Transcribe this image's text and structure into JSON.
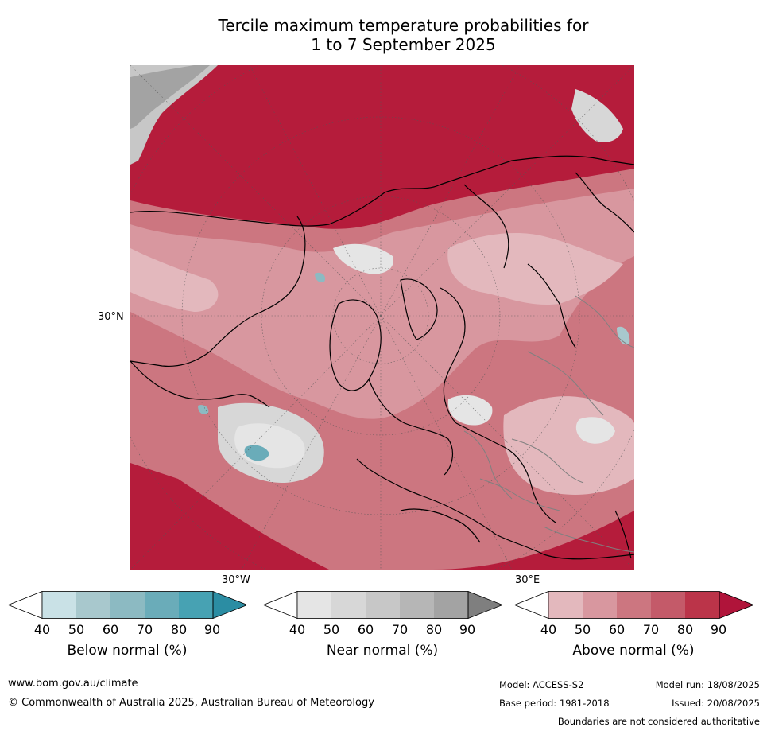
{
  "title": {
    "line1": "Tercile maximum temperature probabilities for",
    "line2": "1 to 7 September 2025"
  },
  "map_labels": {
    "lat": "30°N",
    "lon_left": "30°W",
    "lon_right": "30°E"
  },
  "colorbars": [
    {
      "label": "Below normal (%)",
      "ticks": [
        "40",
        "50",
        "60",
        "70",
        "80",
        "90"
      ],
      "colors": [
        "#ffffff",
        "#c9e1e6",
        "#a8c8cd",
        "#8cbac2",
        "#6aacb9",
        "#47a2b3",
        "#2b8da3"
      ]
    },
    {
      "label": "Near normal (%)",
      "ticks": [
        "40",
        "50",
        "60",
        "70",
        "80",
        "90"
      ],
      "colors": [
        "#ffffff",
        "#e5e5e5",
        "#d7d7d7",
        "#c7c7c7",
        "#b6b6b6",
        "#a3a3a3",
        "#7f7f7f"
      ]
    },
    {
      "label": "Above normal (%)",
      "ticks": [
        "40",
        "50",
        "60",
        "70",
        "80",
        "90"
      ],
      "colors": [
        "#ffffff",
        "#e3b8bd",
        "#d8979f",
        "#cc7680",
        "#c45a69",
        "#bb3449",
        "#b0143a"
      ]
    }
  ],
  "footer": {
    "website": "www.bom.gov.au/climate",
    "copyright": "© Commonwealth of Australia 2025, Australian Bureau of Meteorology",
    "model": "Model: ACCESS-S2",
    "model_run": "Model run: 18/08/2025",
    "base_period": "Base period: 1981-2018",
    "issued": "Issued: 20/08/2025",
    "disclaimer": "Boundaries are not considered authoritative"
  }
}
